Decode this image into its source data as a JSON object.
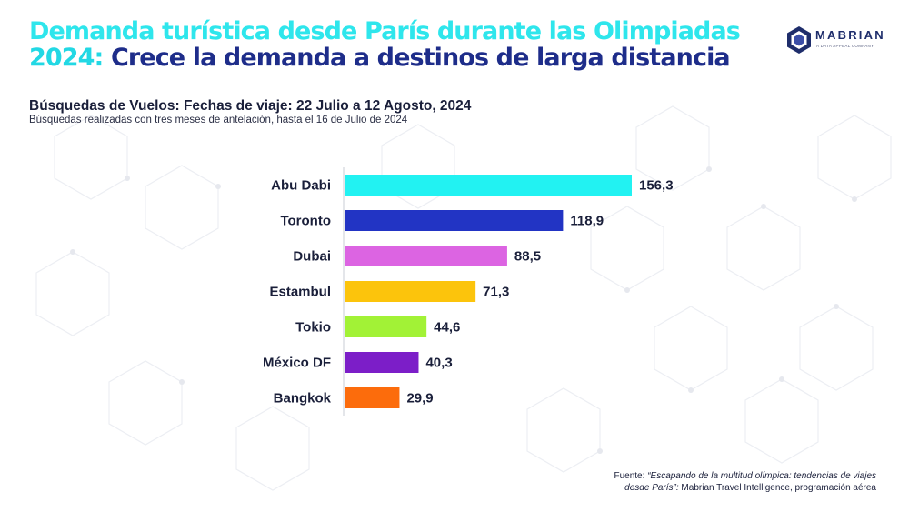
{
  "title": {
    "line1": "Demanda turística desde París durante las Olimpiadas",
    "line2_prefix": "2024:",
    "line2_rest": "Crece la demanda a destinos de larga distancia"
  },
  "logo": {
    "word": "MABRIAN",
    "tagline": "A DATA APPEAL COMPANY"
  },
  "subtitle": "Búsquedas de Vuelos: Fechas de viaje: 22 Julio a 12 Agosto, 2024",
  "subnote": "Búsquedas realizadas con tres meses de antelación, hasta el 16 de Julio de 2024",
  "source": {
    "label": "Fuente: ",
    "quote": "“Escapando de la multitud olímpica: tendencias de viajes desde París”:",
    "rest": " Mabrian Travel Intelligence, programación aérea"
  },
  "chart_data": {
    "type": "bar",
    "orientation": "horizontal",
    "categories": [
      "Abu Dabi",
      "Toronto",
      "Dubai",
      "Estambul",
      "Tokio",
      "México DF",
      "Bangkok"
    ],
    "values": [
      156.3,
      118.9,
      88.5,
      71.3,
      44.6,
      40.3,
      29.9
    ],
    "value_labels": [
      "156,3",
      "118,9",
      "88,5",
      "71,3",
      "44,6",
      "40,3",
      "29,9"
    ],
    "colors": [
      "#22f2f2",
      "#2234c4",
      "#dc64e2",
      "#fcc40c",
      "#a2f236",
      "#7c1ec8",
      "#fc6c0c"
    ],
    "xlim": [
      0,
      156.3
    ],
    "grid": false,
    "legend": "none",
    "title": "",
    "xlabel": "",
    "ylabel": ""
  }
}
